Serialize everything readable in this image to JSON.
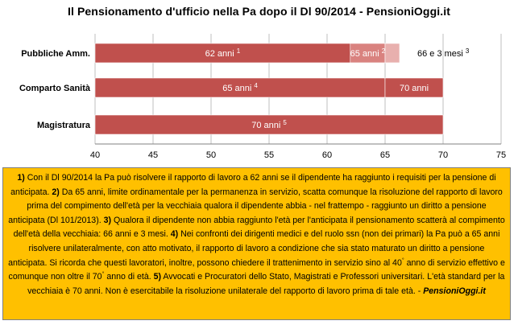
{
  "title": "Il Pensionamento d'ufficio nella Pa dopo il Dl 90/2014 - PensioniOggi.it",
  "colors": {
    "bar_main": "#c0504d",
    "bar_light": "#d9827f",
    "grid": "#bfbfbf",
    "notes_bg": "#ffc000",
    "bar_text": "#ffffff"
  },
  "chart_data": {
    "type": "bar",
    "orientation": "horizontal",
    "stacked": true,
    "categories": [
      "Pubbliche Amm.",
      "Comparto Sanità",
      "Magistratura"
    ],
    "xlim": [
      40,
      75
    ],
    "xticks": [
      "40",
      "45",
      "50",
      "55",
      "60",
      "65",
      "70",
      "75"
    ],
    "grid": true,
    "rows": [
      {
        "category": "Pubbliche Amm.",
        "segments": [
          {
            "start": 40,
            "end": 62,
            "label": "62 anni",
            "sup": "1",
            "color": "#c0504d"
          },
          {
            "start": 62,
            "end": 65,
            "label": "65 anni",
            "sup": "2",
            "color": "#d9827f"
          },
          {
            "start": 65,
            "end": 66.25,
            "label": "",
            "sup": "",
            "color": "#e8b0ae"
          }
        ],
        "outside_label": "66 e 3 mesi",
        "outside_sup": "3"
      },
      {
        "category": "Comparto Sanità",
        "segments": [
          {
            "start": 40,
            "end": 65,
            "label": "65 anni",
            "sup": "4",
            "color": "#c0504d"
          },
          {
            "start": 65,
            "end": 70,
            "label": "70 anni",
            "sup": "",
            "color": "#c0504d"
          }
        ],
        "outside_label": "",
        "outside_sup": ""
      },
      {
        "category": "Magistratura",
        "segments": [
          {
            "start": 40,
            "end": 70,
            "label": "70 anni",
            "sup": "5",
            "color": "#c0504d"
          }
        ],
        "outside_label": "",
        "outside_sup": ""
      }
    ]
  },
  "notes": {
    "n1_num": "1)",
    "n1_text": " Con il Dl 90/2014 la Pa può risolvere il rapporto di lavoro a 62 anni se il dipendente ha raggiunto i requisiti per la pensione di anticipata. ",
    "n2_num": "2)",
    "n2_text": " Da 65 anni, limite ordinamentale per la permanenza in servizio, scatta comunque la risoluzione del rapporto di lavoro prima del compimento dell'età per la vecchiaia qualora il dipendente abbia - nel frattempo - raggiunto un diritto a pensione anticipata (Dl 101/2013). ",
    "n3_num": "3)",
    "n3_text": " Qualora il dipendente non abbia raggiunto l'età per l'anticipata il pensionamento scatterà al compimento dell'età della vecchiaia: 66 anni e 3 mesi. ",
    "n4_num": "4)",
    "n4_text": " Nei confronti dei dirigenti medici e del ruolo ssn (non dei primari) la Pa può a 65 anni risolvere unilateralmente, con atto motivato, il rapporto di lavoro a condizione che sia stato maturato un diritto a pensione anticipata. Si ricorda che questi lavoratori, inoltre, possono chiedere il trattenimento in servizio sino al 40",
    "n4_sup_a": "°",
    "n4_text_b": " anno di servizio effettivo e comunque non oltre il 70",
    "n4_sup_b": "°",
    "n4_text_c": " anno di età. ",
    "n5_num": "5)",
    "n5_text": "  Avvocati e Procuratori dello Stato, Magistrati e Professori universitari. L'età standard per la vecchiaia è 70 anni. Non è esercitabile la risoluzione unilaterale del rapporto di lavoro prima di tale età. - ",
    "source": "PensioniOggi.it"
  }
}
